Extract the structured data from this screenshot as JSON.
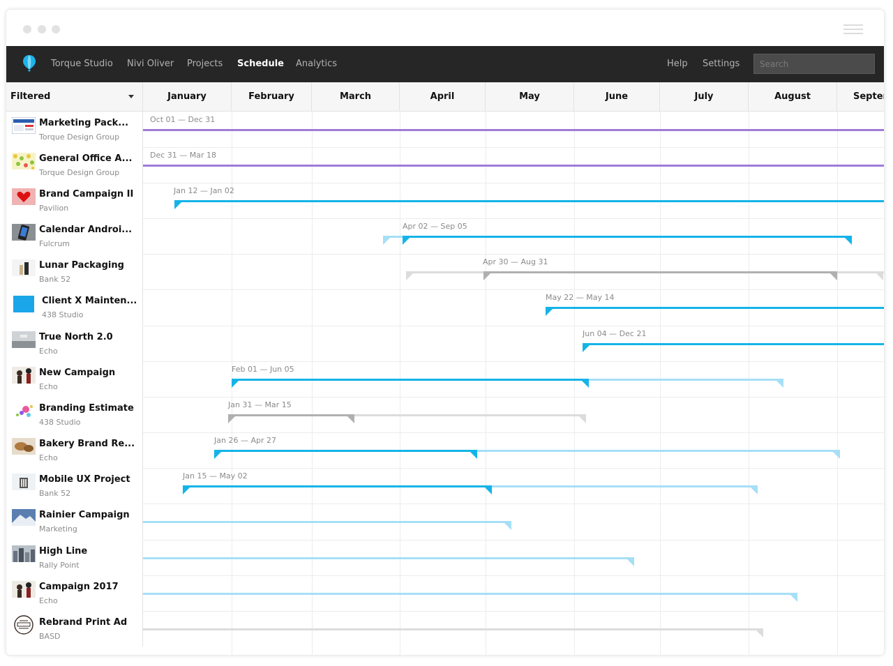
{
  "navbar": {
    "logo_icon": "balloon-logo-icon",
    "items": [
      {
        "label": "Torque Studio",
        "active": false
      },
      {
        "label": "Nivi Oliver",
        "active": false
      },
      {
        "label": "Projects",
        "active": false
      },
      {
        "label": "Schedule",
        "active": true
      },
      {
        "label": "Analytics",
        "active": false
      }
    ],
    "right_items": [
      {
        "label": "Help"
      },
      {
        "label": "Settings"
      }
    ],
    "search": {
      "placeholder": "Search",
      "value": ""
    }
  },
  "filter": {
    "label": "Filtered",
    "icon": "caret-down-icon"
  },
  "months": [
    "January",
    "February",
    "March",
    "April",
    "May",
    "June",
    "July",
    "August",
    "Septer"
  ],
  "colors": {
    "purple": "#a07ad8",
    "blue": "#14b4e8",
    "light_blue": "#a6dff6",
    "gray": "#b0b0b0",
    "light_gray": "#dcdcdc"
  },
  "projects": [
    {
      "name": "Marketing Pack...",
      "client": "Torque Design Group",
      "thumb": "screenshot-thumb",
      "range": "Oct 01 — Dec 31"
    },
    {
      "name": "General Office A...",
      "client": "Torque Design Group",
      "thumb": "confetti-thumb",
      "range": "Dec 31 — Mar 18"
    },
    {
      "name": "Brand Campaign II",
      "client": "Pavilion",
      "thumb": "heart-thumb",
      "range": "Jan 12 — Jan 02"
    },
    {
      "name": "Calendar Androi...",
      "client": "Fulcrum",
      "thumb": "phone-thumb",
      "range": "Apr 02 — Sep 05"
    },
    {
      "name": "Lunar Packaging",
      "client": "Bank 52",
      "thumb": "bottles-thumb",
      "range": "Apr 30 — Aug 31"
    },
    {
      "name": "Client X Mainten...",
      "client": "438 Studio",
      "thumb": "blue-square-thumb",
      "range": "May 22 — May 14"
    },
    {
      "name": "True North 2.0",
      "client": "Echo",
      "thumb": "landscape-thumb",
      "range": "Jun 04 — Dec 21"
    },
    {
      "name": "New Campaign",
      "client": "Echo",
      "thumb": "figures-thumb",
      "range": "Feb 01 — Jun 05"
    },
    {
      "name": "Branding Estimate",
      "client": "438 Studio",
      "thumb": "splash-thumb",
      "range": "Jan 31 — Mar 15"
    },
    {
      "name": "Bakery Brand Re...",
      "client": "Echo",
      "thumb": "bread-thumb",
      "range": "Jan 26 — Apr 27"
    },
    {
      "name": "Mobile UX Project",
      "client": "Bank 52",
      "thumb": "building-thumb",
      "range": "Jan 15 — May 02"
    },
    {
      "name": "Rainier Campaign",
      "client": "Marketing",
      "thumb": "mountain-thumb",
      "range": ""
    },
    {
      "name": "High Line",
      "client": "Rally Point",
      "thumb": "city-thumb",
      "range": ""
    },
    {
      "name": "Campaign 2017",
      "client": "Echo",
      "thumb": "figures-thumb",
      "range": ""
    },
    {
      "name": "Rebrand Print Ad",
      "client": "BASD",
      "thumb": "badge-thumb",
      "range": ""
    }
  ]
}
